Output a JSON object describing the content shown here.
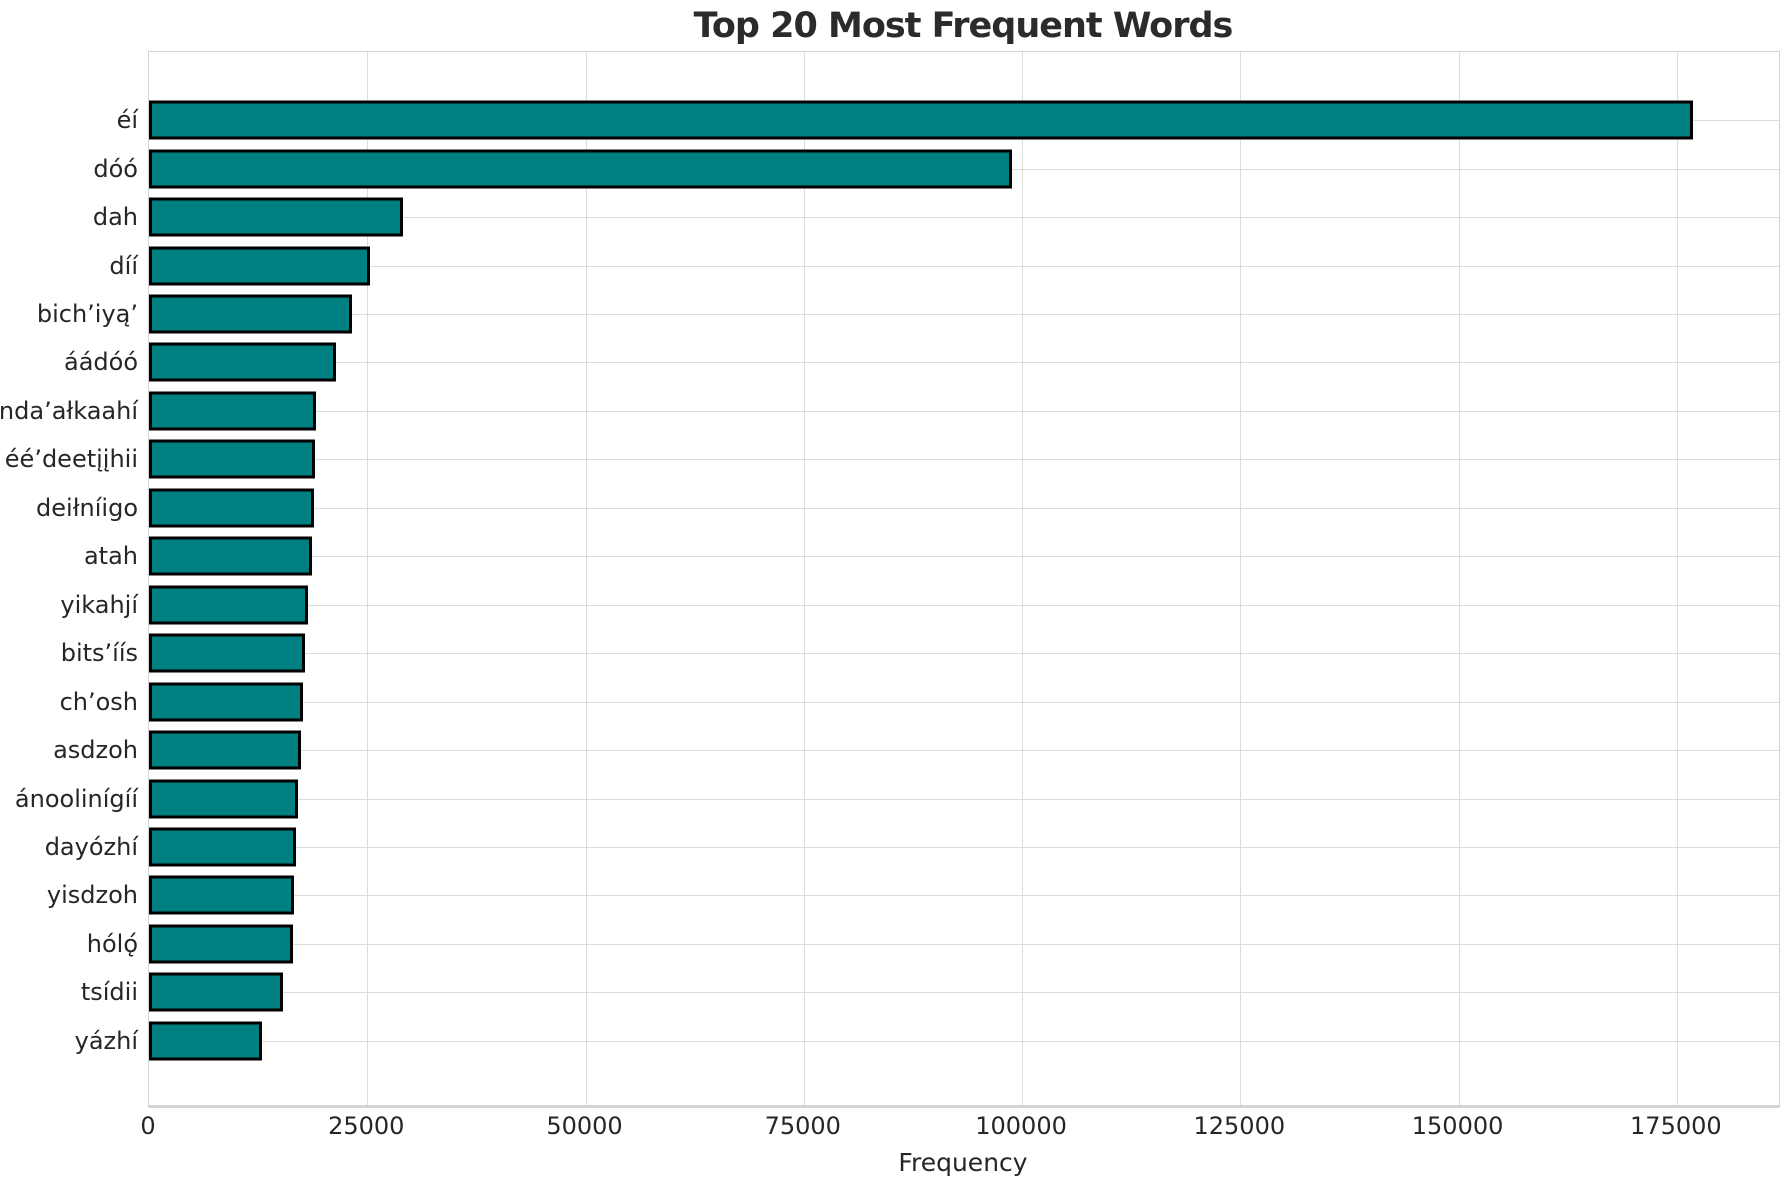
{
  "chart_data": {
    "type": "bar",
    "orientation": "horizontal",
    "title": "Top 20 Most Frequent Words",
    "xlabel": "Frequency",
    "ylabel": "",
    "categories": [
      "éí",
      "dóó",
      "dah",
      "díí",
      "bich’iyą’",
      "áádóó",
      "nda’ałkaahí",
      "éé’deetįįhii",
      "deiłníigo",
      "atah",
      "yikahjí",
      "bits’íís",
      "ch’osh",
      "asdzoh",
      "ánoolinígíí",
      "dayózhí",
      "yisdzoh",
      "hólǫ́",
      "tsídii",
      "yázhí"
    ],
    "values": [
      176800,
      98900,
      29100,
      25300,
      23300,
      21400,
      19100,
      19000,
      18950,
      18700,
      18200,
      17900,
      17600,
      17400,
      17100,
      16800,
      16600,
      16500,
      15400,
      13000
    ],
    "xlim": [
      0,
      186700
    ],
    "xticks": [
      0,
      25000,
      50000,
      75000,
      100000,
      125000,
      150000,
      175000
    ],
    "xtick_labels": [
      "0",
      "25000",
      "50000",
      "75000",
      "100000",
      "125000",
      "150000",
      "175000"
    ],
    "grid": true,
    "legend": false,
    "colors": {
      "bar_fill": "#008080",
      "bar_edge": "#000000",
      "gridline": "#dcdcdc",
      "spine": "#d4d4d4",
      "text": "#262626",
      "background": "#ffffff"
    }
  }
}
